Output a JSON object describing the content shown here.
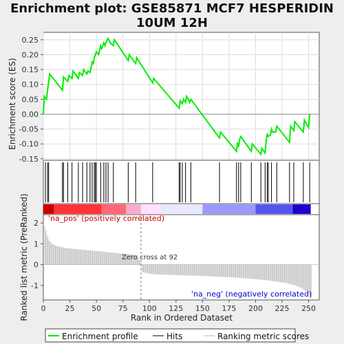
{
  "chart_data": {
    "type": "line",
    "title": "Enrichment plot: GSE85871 MCF7 HESPERIDIN\n10UM 12H",
    "xlabel": "Rank in Ordered Dataset",
    "xlim": [
      0,
      260
    ],
    "x_ticks": [
      0,
      25,
      50,
      75,
      100,
      125,
      150,
      175,
      200,
      225,
      250
    ],
    "top_panel": {
      "ylabel": "Enrichment score (ES)",
      "ylim": [
        -0.155,
        0.275
      ],
      "y_ticks": [
        -0.15,
        -0.1,
        -0.05,
        0.0,
        0.05,
        0.1,
        0.15,
        0.2,
        0.25
      ],
      "y_tick_labels": [
        "-0.15",
        "-0.10",
        "-0.05",
        "0.00",
        "0.05",
        "0.10",
        "0.15",
        "0.20",
        "0.25"
      ],
      "grid": true,
      "series": [
        {
          "name": "Enrichment profile",
          "color": "#00ee00",
          "x": [
            0,
            1,
            3,
            5,
            6,
            18,
            19,
            23,
            24,
            27,
            28,
            33,
            34,
            37,
            38,
            41,
            42,
            44,
            46,
            47,
            48,
            49,
            50,
            52,
            54,
            55,
            57,
            58,
            59,
            61,
            63,
            66,
            67,
            80,
            81,
            87,
            88,
            103,
            104,
            128,
            129,
            131,
            132,
            134,
            135,
            138,
            139,
            166,
            167,
            182,
            183,
            184,
            185,
            186,
            196,
            197,
            205,
            206,
            209,
            210,
            211,
            212,
            214,
            215,
            216,
            219,
            220,
            232,
            233,
            236,
            237,
            245,
            246,
            250,
            251
          ],
          "y": [
            0.0,
            0.06,
            0.05,
            0.11,
            0.135,
            0.08,
            0.125,
            0.11,
            0.13,
            0.12,
            0.145,
            0.12,
            0.14,
            0.13,
            0.15,
            0.135,
            0.145,
            0.14,
            0.175,
            0.17,
            0.19,
            0.2,
            0.21,
            0.2,
            0.23,
            0.22,
            0.24,
            0.23,
            0.24,
            0.255,
            0.24,
            0.23,
            0.25,
            0.18,
            0.2,
            0.17,
            0.19,
            0.105,
            0.12,
            0.02,
            0.045,
            0.035,
            0.05,
            0.04,
            0.06,
            0.04,
            0.05,
            -0.08,
            -0.06,
            -0.125,
            -0.095,
            -0.11,
            -0.085,
            -0.075,
            -0.125,
            -0.1,
            -0.135,
            -0.115,
            -0.13,
            -0.09,
            -0.065,
            -0.075,
            -0.07,
            -0.05,
            -0.06,
            -0.06,
            -0.04,
            -0.095,
            -0.04,
            -0.055,
            -0.025,
            -0.06,
            -0.02,
            -0.045,
            0.0
          ]
        }
      ]
    },
    "hits": {
      "name": "Hits",
      "color": "#000000",
      "x": [
        2,
        4,
        5,
        18,
        19,
        23,
        27,
        33,
        37,
        41,
        44,
        46,
        48,
        49,
        50,
        54,
        57,
        59,
        61,
        66,
        80,
        87,
        103,
        128,
        129,
        131,
        134,
        139,
        166,
        182,
        184,
        186,
        196,
        205,
        209,
        211,
        212,
        215,
        220,
        232,
        236,
        245,
        251
      ]
    },
    "rank_gradient": {
      "stops": [
        {
          "rank": 0,
          "color": "#cc0000"
        },
        {
          "rank": 10,
          "color": "#ff3333"
        },
        {
          "rank": 55,
          "color": "#ff6677"
        },
        {
          "rank": 78,
          "color": "#ffaacc"
        },
        {
          "rank": 92,
          "color": "#ffe0ff"
        },
        {
          "rank": 110,
          "color": "#e8e8ff"
        },
        {
          "rank": 150,
          "color": "#9999ff"
        },
        {
          "rank": 200,
          "color": "#5555ee"
        },
        {
          "rank": 235,
          "color": "#2200cc"
        },
        {
          "rank": 252,
          "color": "#1100aa"
        }
      ]
    },
    "bottom_panel": {
      "ylabel": "Ranked list metric (PreRanked)",
      "ylim": [
        -1.7,
        2.4
      ],
      "y_ticks": [
        -1,
        0,
        1,
        2
      ],
      "y_tick_labels": [
        "-1",
        "0",
        "1",
        "2"
      ],
      "series": [
        {
          "name": "Ranking metric scores",
          "color": "#bbbbbb",
          "x": [
            0,
            1,
            2,
            3,
            5,
            8,
            12,
            20,
            30,
            40,
            50,
            60,
            70,
            80,
            88,
            92,
            93,
            100,
            120,
            150,
            180,
            200,
            215,
            230,
            240,
            245,
            250,
            252
          ],
          "y": [
            2.1,
            1.85,
            1.65,
            1.45,
            1.15,
            1.0,
            0.9,
            0.8,
            0.75,
            0.7,
            0.65,
            0.6,
            0.55,
            0.5,
            0.45,
            0.05,
            -0.35,
            -0.45,
            -0.5,
            -0.55,
            -0.62,
            -0.7,
            -0.78,
            -0.9,
            -1.05,
            -1.2,
            -1.4,
            -1.6
          ]
        }
      ],
      "zero_cross": 92,
      "zero_cross_label": "Zero cross at 92",
      "pos_label": "'na_pos' (positively correlated)",
      "neg_label": "'na_neg' (negatively correlated)",
      "pos_color": "#cc0000",
      "neg_color": "#0000cc"
    },
    "legend": {
      "position": "bottom",
      "entries": [
        {
          "label": "Enrichment profile",
          "color": "#00ee00",
          "style": "line"
        },
        {
          "label": "Hits",
          "color": "#000000",
          "style": "line"
        },
        {
          "label": "Ranking metric scores",
          "color": "#bbbbbb",
          "style": "line"
        }
      ]
    }
  }
}
